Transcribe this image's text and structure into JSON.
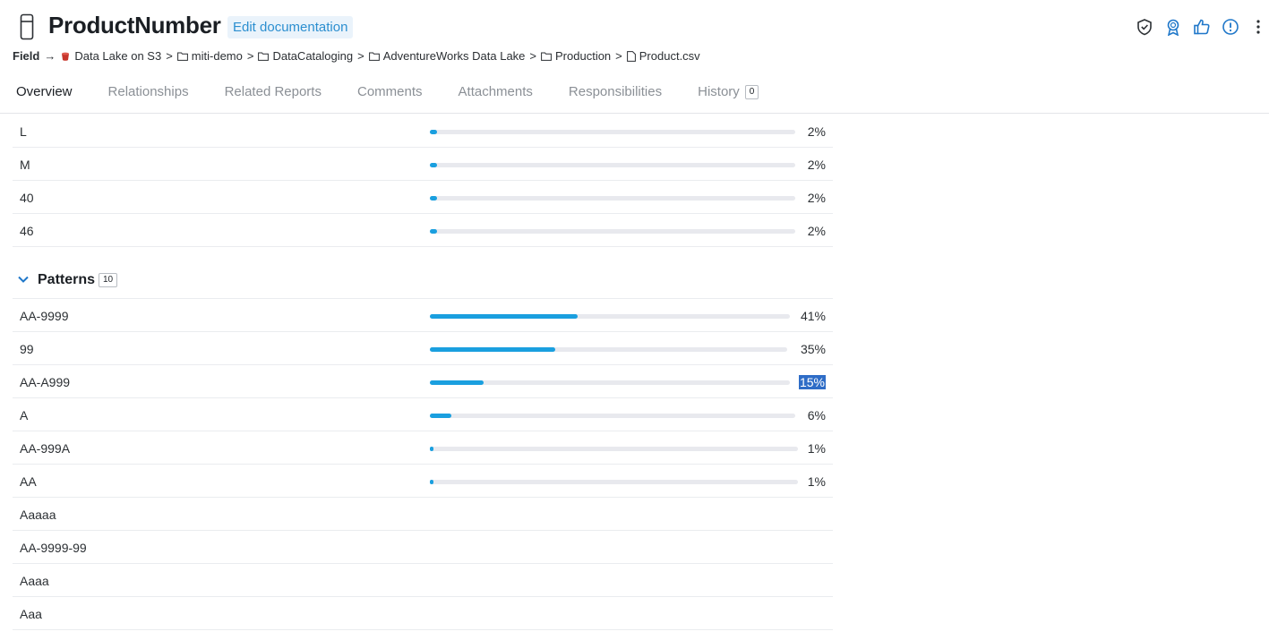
{
  "header": {
    "title": "ProductNumber",
    "edit_label": "Edit documentation"
  },
  "breadcrumb": {
    "lead": "Field",
    "arrow": "→",
    "sep": ">",
    "items": [
      "Data Lake on S3",
      "miti-demo",
      "DataCataloging",
      "AdventureWorks Data Lake",
      "Production",
      "Product.csv"
    ]
  },
  "tabs": [
    {
      "label": "Overview"
    },
    {
      "label": "Relationships"
    },
    {
      "label": "Related Reports"
    },
    {
      "label": "Comments"
    },
    {
      "label": "Attachments"
    },
    {
      "label": "Responsibilities"
    },
    {
      "label": "History",
      "count": "0"
    }
  ],
  "top_values": [
    {
      "label": "L",
      "pct": "2%",
      "value": 2
    },
    {
      "label": "M",
      "pct": "2%",
      "value": 2
    },
    {
      "label": "40",
      "pct": "2%",
      "value": 2
    },
    {
      "label": "46",
      "pct": "2%",
      "value": 2
    }
  ],
  "patterns": {
    "title": "Patterns",
    "count": "10",
    "rows": [
      {
        "label": "AA-9999",
        "pct": "41%",
        "value": 41
      },
      {
        "label": "99",
        "pct": "35%",
        "value": 35
      },
      {
        "label": "AA-A999",
        "pct": "15%",
        "value": 15
      },
      {
        "label": "A",
        "pct": "6%",
        "value": 6
      },
      {
        "label": "AA-999A",
        "pct": "1%",
        "value": 1
      },
      {
        "label": "AA",
        "pct": "1%",
        "value": 1
      },
      {
        "label": "Aaaaa"
      },
      {
        "label": "AA-9999-99"
      },
      {
        "label": "Aaaa"
      },
      {
        "label": "Aaa"
      }
    ]
  },
  "colors": {
    "accent": "#1a9fdf",
    "track": "#e8e9ee",
    "link": "#2c8fd0",
    "icon": "#1f77c9"
  }
}
